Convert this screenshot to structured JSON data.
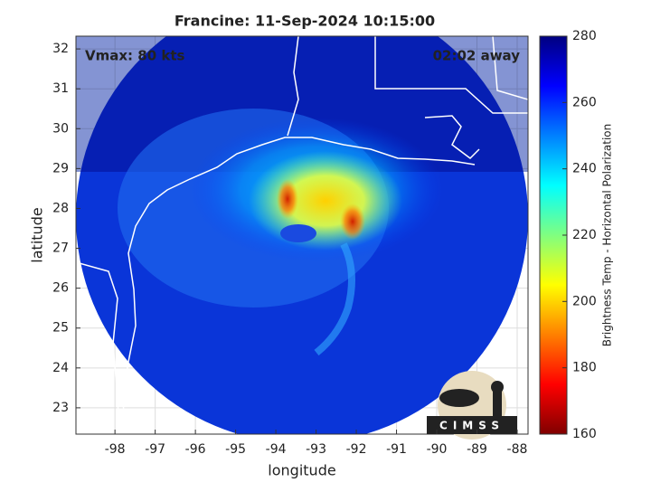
{
  "chart_data": {
    "type": "map",
    "title": "Francine: 11-Sep-2024 10:15:00",
    "annotations": [
      "Vmax: 80 kts",
      "02:02 away"
    ],
    "x_label": "longitude",
    "y_label": "latitude",
    "xlim": [
      -98.97,
      -87.73
    ],
    "xticks": [
      -98,
      -97,
      -96,
      -95,
      -94,
      -93,
      -92,
      -91,
      -90,
      -89,
      -88
    ],
    "ylim": [
      22.34,
      32.32
    ],
    "yticks": [
      23,
      24,
      25,
      26,
      27,
      28,
      29,
      30,
      31,
      32
    ],
    "grid": true,
    "colorbar": {
      "label": "Brightness Temp - Horizontal Polarization",
      "lim": [
        160,
        280
      ],
      "ticks": [
        160,
        180,
        200,
        220,
        240,
        260,
        280
      ],
      "colormap": [
        "#800000",
        "#ff0000",
        "#ff8000",
        "#ffff00",
        "#80ff80",
        "#00ffff",
        "#0080ff",
        "#0000ff",
        "#000080"
      ]
    },
    "logo": "CIMSS"
  }
}
